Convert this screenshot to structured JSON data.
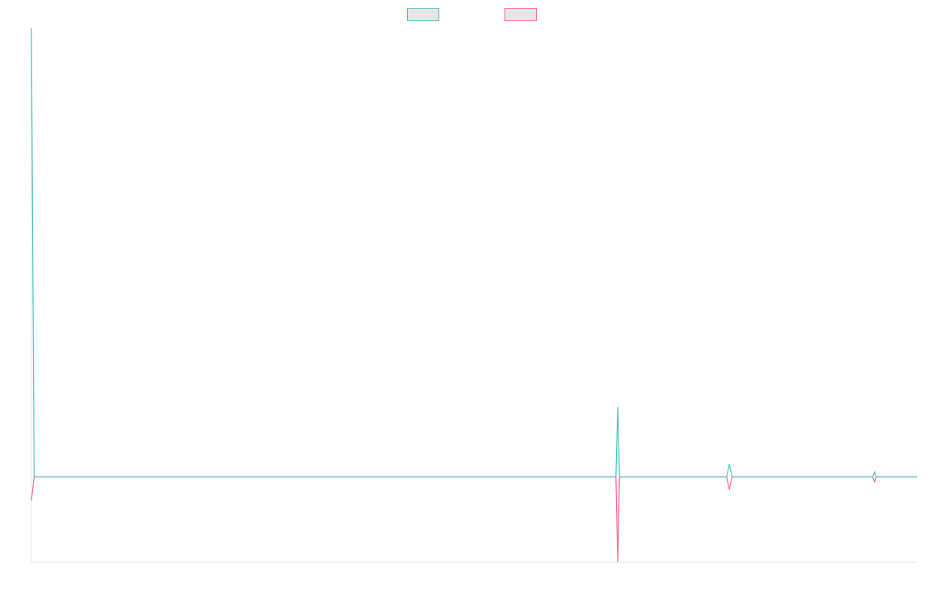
{
  "chart_data": {
    "type": "line",
    "title": "",
    "xlabel": "",
    "ylabel": "",
    "grid": false,
    "legend_position": "top-center",
    "xlim": [
      0,
      100
    ],
    "ylim": [
      -100,
      525
    ],
    "series": [
      {
        "label": "",
        "color": "#4bc0c0",
        "fill": "#e6e6e6",
        "points": [
          [
            0,
            525
          ],
          [
            0.3,
            0
          ],
          [
            66,
            0
          ],
          [
            66.2,
            82
          ],
          [
            66.4,
            0
          ],
          [
            78.5,
            0
          ],
          [
            78.8,
            15
          ],
          [
            79.1,
            0
          ],
          [
            95,
            0
          ],
          [
            95.2,
            6
          ],
          [
            95.4,
            0
          ],
          [
            100,
            0
          ]
        ]
      },
      {
        "label": "",
        "color": "#ff6384",
        "fill": "#e6e6e6",
        "points": [
          [
            0,
            -28
          ],
          [
            0.3,
            0
          ],
          [
            66,
            0
          ],
          [
            66.2,
            -100
          ],
          [
            66.4,
            0
          ],
          [
            78.5,
            0
          ],
          [
            78.8,
            -15
          ],
          [
            79.1,
            0
          ],
          [
            95,
            0
          ],
          [
            95.2,
            -6
          ],
          [
            95.4,
            0
          ],
          [
            100,
            0
          ]
        ]
      }
    ]
  }
}
